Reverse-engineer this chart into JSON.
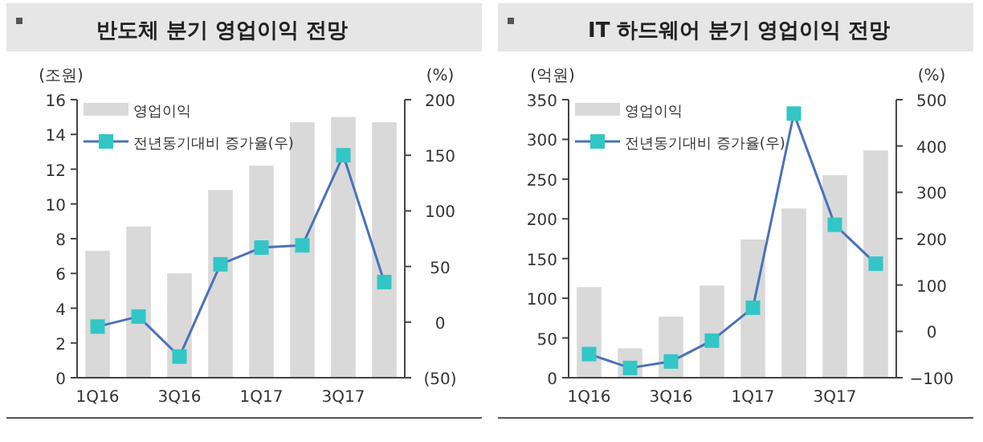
{
  "chart_data": [
    {
      "type": "bar",
      "title": "반도체 분기 영업이익 전망",
      "ylabel": "(조원)",
      "y2label": "(%)",
      "categories": [
        "1Q16",
        null,
        "3Q16",
        null,
        "1Q17",
        null,
        "3Q17",
        null
      ],
      "ylim": [
        0,
        16
      ],
      "yticks": [
        0,
        2,
        4,
        6,
        8,
        10,
        12,
        14,
        16
      ],
      "y2lim": [
        -50,
        200
      ],
      "y2ticks": [
        {
          "value": -50,
          "label": "(50)"
        },
        0,
        50,
        100,
        150,
        200
      ],
      "legend": "top left",
      "grid": false,
      "series": [
        {
          "name": "영업이익",
          "type": "bar",
          "color": "#d9d9d9",
          "values": [
            7.3,
            8.7,
            6.0,
            10.8,
            12.2,
            14.7,
            15.0,
            14.7
          ]
        },
        {
          "name": "전년동기대비 증가율(우)",
          "type": "line",
          "axis": "y2",
          "marker": "square",
          "color": "#33c6c6",
          "values": [
            -4,
            5,
            -31,
            52,
            67,
            69,
            150,
            36
          ]
        }
      ]
    },
    {
      "type": "bar",
      "title": "IT 하드웨어 분기 영업이익 전망",
      "ylabel": "(억원)",
      "y2label": "(%)",
      "categories": [
        "1Q16",
        null,
        "3Q16",
        null,
        "1Q17",
        null,
        "3Q17",
        null
      ],
      "ylim": [
        0,
        350
      ],
      "yticks": [
        0,
        50,
        100,
        150,
        200,
        250,
        300,
        350
      ],
      "y2lim": [
        -100,
        500
      ],
      "y2ticks": [
        {
          "value": -100,
          "label": "−100"
        },
        0,
        100,
        200,
        300,
        400,
        500
      ],
      "legend": "top left",
      "grid": false,
      "series": [
        {
          "name": "영업이익",
          "type": "bar",
          "color": "#d9d9d9",
          "values": [
            114,
            37,
            77,
            116,
            174,
            213,
            255,
            286
          ]
        },
        {
          "name": "전년동기대비 증가율(우)",
          "type": "line",
          "axis": "y2",
          "marker": "square",
          "color": "#33c6c6",
          "values": [
            -49,
            -79,
            -65,
            -20,
            51,
            470,
            230,
            146
          ]
        }
      ]
    }
  ]
}
